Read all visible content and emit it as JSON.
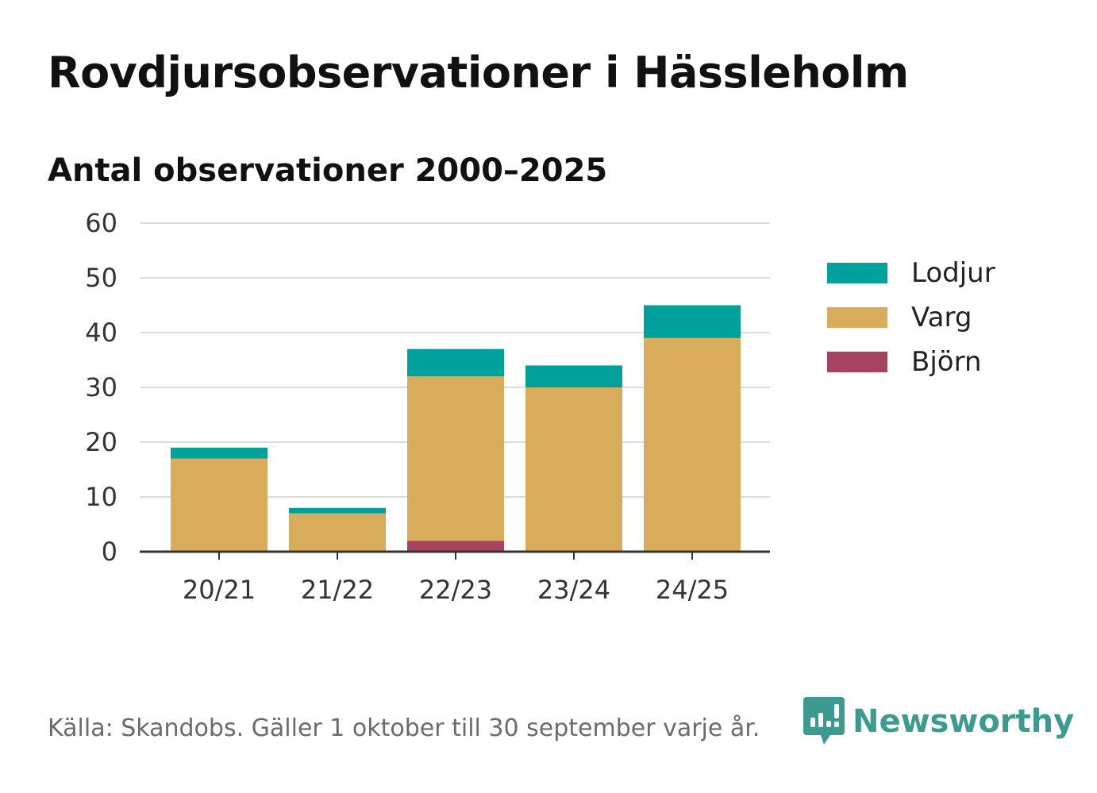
{
  "title": "Rovdjursobservationer i Hässleholm",
  "subtitle": "Antal observationer 2000–2025",
  "source": "Källa: Skandobs. Gäller 1 oktober till 30 september varje år.",
  "brand": {
    "name": "Newsworthy",
    "icon": "newsworthy-logo-icon",
    "color": "#3c9a8e"
  },
  "legend": [
    {
      "label": "Lodjur",
      "color": "#00a19a"
    },
    {
      "label": "Varg",
      "color": "#d9ac5c"
    },
    {
      "label": "Björn",
      "color": "#a8435f"
    }
  ],
  "chart_data": {
    "type": "bar",
    "stacked": true,
    "title": "Rovdjursobservationer i Hässleholm",
    "subtitle": "Antal observationer 2000–2025",
    "xlabel": "",
    "ylabel": "",
    "categories": [
      "20/21",
      "21/22",
      "22/23",
      "23/24",
      "24/25"
    ],
    "ylim": [
      0,
      60
    ],
    "yticks": [
      0,
      10,
      20,
      30,
      40,
      50,
      60
    ],
    "grid": true,
    "legend_position": "right",
    "series": [
      {
        "name": "Björn",
        "color": "#a8435f",
        "values": [
          0,
          0,
          2,
          0,
          0
        ]
      },
      {
        "name": "Varg",
        "color": "#d9ac5c",
        "values": [
          17,
          7,
          30,
          30,
          39
        ]
      },
      {
        "name": "Lodjur",
        "color": "#00a19a",
        "values": [
          2,
          1,
          5,
          4,
          6
        ]
      }
    ]
  }
}
